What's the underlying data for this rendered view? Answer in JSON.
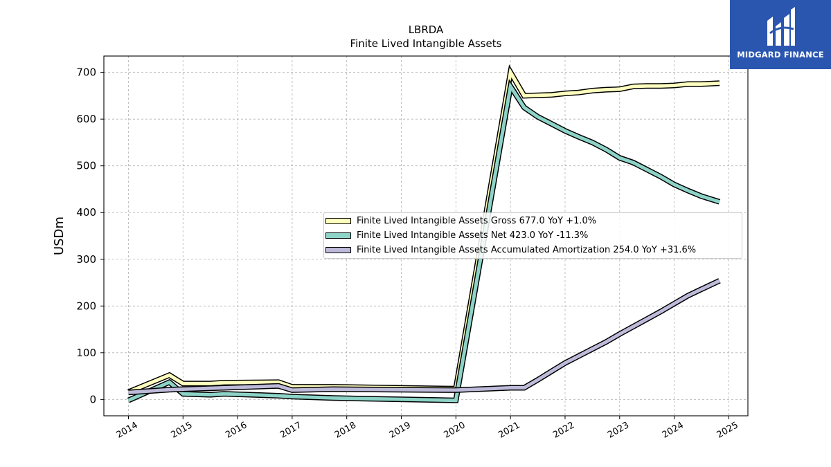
{
  "chart_data": {
    "type": "line",
    "title": "LBRDA",
    "subtitle": "Finite Lived Intangible Assets",
    "ylabel": "USDm",
    "xlabel": "",
    "xlim": [
      2013.55,
      2025.35
    ],
    "ylim": [
      -35,
      735
    ],
    "x_ticks": [
      "2014",
      "2015",
      "2016",
      "2017",
      "2018",
      "2019",
      "2020",
      "2021",
      "2022",
      "2023",
      "2024",
      "2025"
    ],
    "y_ticks": [
      "0",
      "100",
      "200",
      "300",
      "400",
      "500",
      "600",
      "700"
    ],
    "grid": true,
    "legend_position": "center-right",
    "series": [
      {
        "name": "Finite Lived Intangible Assets Gross",
        "legend_label": "Finite Lived Intangible Assets Gross  677.0 YoY +1.0%",
        "color": "#ffffbf",
        "points": [
          [
            2014.0,
            16
          ],
          [
            2014.75,
            52
          ],
          [
            2015.0,
            34
          ],
          [
            2015.5,
            34
          ],
          [
            2015.75,
            36
          ],
          [
            2016.75,
            37
          ],
          [
            2017.0,
            27
          ],
          [
            2017.75,
            27
          ],
          [
            2020.0,
            23
          ],
          [
            2021.0,
            700
          ],
          [
            2021.25,
            650
          ],
          [
            2021.75,
            652
          ],
          [
            2022.0,
            655
          ],
          [
            2022.25,
            657
          ],
          [
            2022.5,
            661
          ],
          [
            2022.75,
            663
          ],
          [
            2023.0,
            664
          ],
          [
            2023.25,
            670
          ],
          [
            2023.5,
            671
          ],
          [
            2023.75,
            671
          ],
          [
            2024.0,
            672
          ],
          [
            2024.25,
            675
          ],
          [
            2024.5,
            675
          ],
          [
            2024.83,
            677
          ]
        ]
      },
      {
        "name": "Finite Lived Intangible Assets Net",
        "legend_label": "Finite Lived Intangible Assets Net  423.0 YoY -11.3%",
        "color": "#8dd3c7",
        "points": [
          [
            2014.0,
            -2
          ],
          [
            2014.75,
            37
          ],
          [
            2015.0,
            12
          ],
          [
            2015.5,
            10
          ],
          [
            2015.75,
            12
          ],
          [
            2016.75,
            8
          ],
          [
            2017.0,
            6
          ],
          [
            2017.75,
            3
          ],
          [
            2020.0,
            -2
          ],
          [
            2021.0,
            670
          ],
          [
            2021.25,
            625
          ],
          [
            2021.5,
            605
          ],
          [
            2021.75,
            590
          ],
          [
            2022.0,
            575
          ],
          [
            2022.25,
            562
          ],
          [
            2022.5,
            550
          ],
          [
            2022.75,
            535
          ],
          [
            2023.0,
            517
          ],
          [
            2023.25,
            507
          ],
          [
            2023.5,
            492
          ],
          [
            2023.75,
            477
          ],
          [
            2024.0,
            460
          ],
          [
            2024.25,
            447
          ],
          [
            2024.5,
            435
          ],
          [
            2024.83,
            423
          ]
        ]
      },
      {
        "name": "Finite Lived Intangible Assets Accumulated Amortization",
        "legend_label": "Finite Lived Intangible Assets Accumulated Amortization  254.0 YoY +31.6%",
        "color": "#bebada",
        "points": [
          [
            2014.0,
            15
          ],
          [
            2014.75,
            21
          ],
          [
            2015.0,
            22
          ],
          [
            2016.75,
            29
          ],
          [
            2017.0,
            20
          ],
          [
            2017.75,
            22
          ],
          [
            2020.0,
            20
          ],
          [
            2021.0,
            25
          ],
          [
            2021.25,
            25
          ],
          [
            2021.5,
            42
          ],
          [
            2021.75,
            60
          ],
          [
            2022.0,
            78
          ],
          [
            2022.25,
            93
          ],
          [
            2022.5,
            108
          ],
          [
            2022.75,
            123
          ],
          [
            2023.0,
            140
          ],
          [
            2023.25,
            156
          ],
          [
            2023.5,
            172
          ],
          [
            2023.75,
            188
          ],
          [
            2024.0,
            205
          ],
          [
            2024.25,
            222
          ],
          [
            2024.5,
            236
          ],
          [
            2024.83,
            254
          ]
        ]
      }
    ]
  },
  "logo": {
    "text": "MIDGARD FINANCE"
  }
}
